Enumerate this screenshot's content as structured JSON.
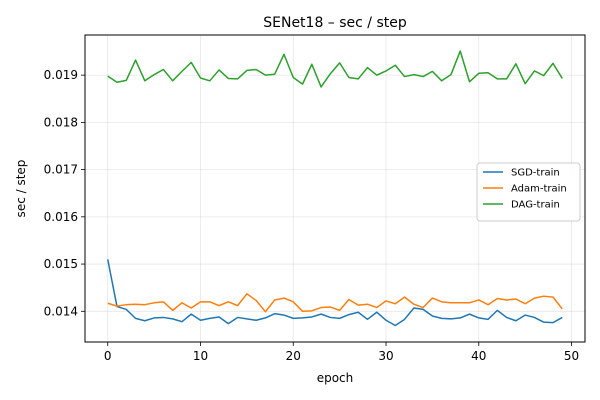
{
  "chart_data": {
    "type": "line",
    "title": "SENet18 – sec / step",
    "xlabel": "epoch",
    "ylabel": "sec / step",
    "xlim": [
      -2.45,
      51.45
    ],
    "ylim": [
      0.01335,
      0.01985
    ],
    "xticks": [
      0,
      10,
      20,
      30,
      40,
      50
    ],
    "yticks": [
      0.014,
      0.015,
      0.016,
      0.017,
      0.018,
      0.019
    ],
    "ytick_labels": [
      "0.014",
      "0.015",
      "0.016",
      "0.017",
      "0.018",
      "0.019"
    ],
    "grid": true,
    "legend_position": "center-right",
    "x": [
      0,
      1,
      2,
      3,
      4,
      5,
      6,
      7,
      8,
      9,
      10,
      11,
      12,
      13,
      14,
      15,
      16,
      17,
      18,
      19,
      20,
      21,
      22,
      23,
      24,
      25,
      26,
      27,
      28,
      29,
      30,
      31,
      32,
      33,
      34,
      35,
      36,
      37,
      38,
      39,
      40,
      41,
      42,
      43,
      44,
      45,
      46,
      47,
      48,
      49
    ],
    "series": [
      {
        "name": "SGD-train",
        "color": "#1f77b4",
        "values": [
          0.0151,
          0.0141,
          0.01404,
          0.01385,
          0.0138,
          0.01386,
          0.01387,
          0.01384,
          0.01378,
          0.01394,
          0.01381,
          0.01385,
          0.01388,
          0.01374,
          0.01387,
          0.01384,
          0.01381,
          0.01386,
          0.01395,
          0.01392,
          0.01385,
          0.01386,
          0.01388,
          0.01394,
          0.01387,
          0.01385,
          0.01393,
          0.01398,
          0.01383,
          0.01398,
          0.01381,
          0.0137,
          0.01383,
          0.01407,
          0.01404,
          0.0139,
          0.01385,
          0.01384,
          0.01386,
          0.01394,
          0.01386,
          0.01383,
          0.01402,
          0.01387,
          0.0138,
          0.01392,
          0.01387,
          0.01377,
          0.01376,
          0.01387
        ]
      },
      {
        "name": "Adam-train",
        "color": "#ff7f0e",
        "values": [
          0.01417,
          0.01411,
          0.01414,
          0.01415,
          0.01414,
          0.01418,
          0.0142,
          0.01402,
          0.01418,
          0.01407,
          0.0142,
          0.0142,
          0.01412,
          0.0142,
          0.01412,
          0.01437,
          0.01423,
          0.01399,
          0.01424,
          0.01428,
          0.0142,
          0.014,
          0.01401,
          0.01408,
          0.01409,
          0.01402,
          0.01425,
          0.01413,
          0.01415,
          0.01408,
          0.01422,
          0.01416,
          0.0143,
          0.01415,
          0.01408,
          0.01428,
          0.0142,
          0.01418,
          0.01418,
          0.01418,
          0.01424,
          0.01414,
          0.01427,
          0.01424,
          0.01426,
          0.01416,
          0.01428,
          0.01432,
          0.0143,
          0.01405
        ]
      },
      {
        "name": "DAG-train",
        "color": "#2ca02c",
        "values": [
          0.01898,
          0.01885,
          0.01889,
          0.01932,
          0.01888,
          0.01901,
          0.01912,
          0.01888,
          0.01908,
          0.01927,
          0.01894,
          0.01888,
          0.01911,
          0.01893,
          0.01892,
          0.0191,
          0.01912,
          0.019,
          0.01902,
          0.01944,
          0.01895,
          0.01881,
          0.01923,
          0.01875,
          0.01903,
          0.01926,
          0.01895,
          0.01892,
          0.01916,
          0.019,
          0.01909,
          0.01921,
          0.01897,
          0.01901,
          0.01897,
          0.01908,
          0.01888,
          0.01901,
          0.01951,
          0.01886,
          0.01904,
          0.01905,
          0.01892,
          0.01892,
          0.01924,
          0.01882,
          0.01909,
          0.01899,
          0.01925,
          0.01893
        ]
      }
    ]
  }
}
